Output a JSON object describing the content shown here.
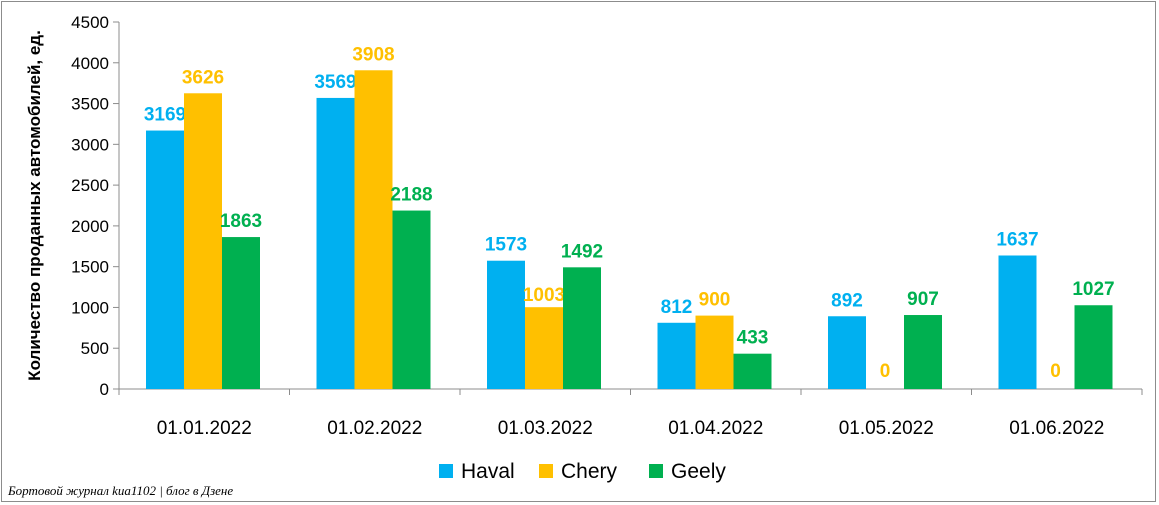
{
  "chart_data": {
    "type": "bar",
    "categories": [
      "01.01.2022",
      "01.02.2022",
      "01.03.2022",
      "01.04.2022",
      "01.05.2022",
      "01.06.2022"
    ],
    "series": [
      {
        "name": "Haval",
        "color": "#00b0f0",
        "values": [
          3169,
          3569,
          1573,
          812,
          892,
          1637
        ]
      },
      {
        "name": "Chery",
        "color": "#ffc000",
        "values": [
          3626,
          3908,
          1003,
          900,
          0,
          0
        ]
      },
      {
        "name": "Geely",
        "color": "#00b050",
        "values": [
          1863,
          2188,
          1492,
          433,
          907,
          1027
        ]
      }
    ],
    "ylabel": "Количество проданных  автомобилей, ед.",
    "ylim": [
      0,
      4500
    ],
    "yticks": [
      0,
      500,
      1000,
      1500,
      2000,
      2500,
      3000,
      3500,
      4000,
      4500
    ],
    "grid": false,
    "legend_position": "bottom"
  },
  "footnote": "Бортовой журнал kиа1102 | блог в Дзене"
}
